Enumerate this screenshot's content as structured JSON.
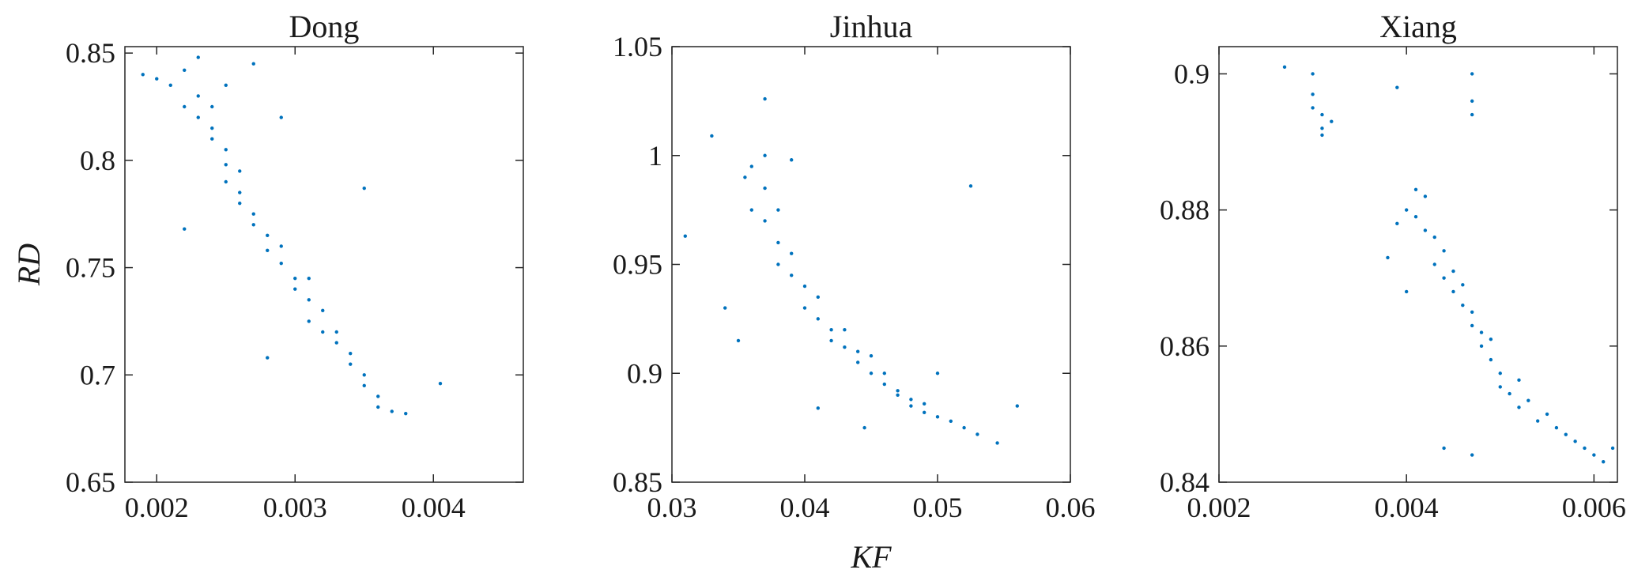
{
  "chart_data": [
    {
      "type": "scatter",
      "title": "Dong",
      "ylabel": "RD",
      "color": "#0072bd",
      "xlim": [
        0.00177,
        0.00465
      ],
      "ylim": [
        0.65,
        0.853
      ],
      "xticks": [
        0.002,
        0.003,
        0.004
      ],
      "yticks": [
        0.65,
        0.7,
        0.75,
        0.8,
        0.85
      ],
      "x": [
        0.0019,
        0.002,
        0.0021,
        0.0022,
        0.0022,
        0.0023,
        0.0023,
        0.0023,
        0.0024,
        0.0024,
        0.0024,
        0.0025,
        0.0025,
        0.0025,
        0.0026,
        0.0026,
        0.0026,
        0.0027,
        0.0027,
        0.0028,
        0.0028,
        0.0029,
        0.0029,
        0.003,
        0.003,
        0.0031,
        0.0031,
        0.0031,
        0.0032,
        0.0032,
        0.0033,
        0.0033,
        0.0034,
        0.0034,
        0.0035,
        0.0035,
        0.0036,
        0.0036,
        0.0037,
        0.0038,
        0.00405,
        0.0028,
        0.0022,
        0.0027,
        0.0029,
        0.0035,
        0.0025
      ],
      "y": [
        0.84,
        0.838,
        0.835,
        0.842,
        0.825,
        0.848,
        0.83,
        0.82,
        0.815,
        0.81,
        0.825,
        0.805,
        0.798,
        0.79,
        0.785,
        0.795,
        0.78,
        0.775,
        0.77,
        0.765,
        0.758,
        0.752,
        0.76,
        0.745,
        0.74,
        0.735,
        0.745,
        0.725,
        0.73,
        0.72,
        0.715,
        0.72,
        0.705,
        0.71,
        0.695,
        0.7,
        0.69,
        0.685,
        0.683,
        0.682,
        0.696,
        0.708,
        0.768,
        0.845,
        0.82,
        0.787,
        0.835
      ]
    },
    {
      "type": "scatter",
      "title": "Jinhua",
      "xlabel": "KF",
      "color": "#0072bd",
      "xlim": [
        0.03,
        0.06
      ],
      "ylim": [
        0.85,
        1.05
      ],
      "xticks": [
        0.03,
        0.04,
        0.05,
        0.06
      ],
      "yticks": [
        0.85,
        0.9,
        0.95,
        1,
        1.05
      ],
      "x": [
        0.031,
        0.033,
        0.0355,
        0.036,
        0.036,
        0.037,
        0.037,
        0.037,
        0.037,
        0.038,
        0.038,
        0.038,
        0.039,
        0.039,
        0.039,
        0.04,
        0.04,
        0.041,
        0.041,
        0.042,
        0.042,
        0.043,
        0.043,
        0.044,
        0.044,
        0.045,
        0.045,
        0.046,
        0.046,
        0.047,
        0.047,
        0.048,
        0.048,
        0.049,
        0.049,
        0.05,
        0.05,
        0.051,
        0.052,
        0.053,
        0.0545,
        0.0525,
        0.056,
        0.035,
        0.034,
        0.0445,
        0.041
      ],
      "y": [
        0.963,
        1.009,
        0.99,
        0.995,
        0.975,
        1.0,
        0.985,
        0.97,
        1.026,
        0.975,
        0.96,
        0.95,
        0.955,
        0.945,
        0.998,
        0.94,
        0.93,
        0.935,
        0.925,
        0.92,
        0.915,
        0.912,
        0.92,
        0.91,
        0.905,
        0.908,
        0.9,
        0.9,
        0.895,
        0.892,
        0.89,
        0.888,
        0.885,
        0.886,
        0.882,
        0.88,
        0.9,
        0.878,
        0.875,
        0.872,
        0.868,
        0.986,
        0.885,
        0.915,
        0.93,
        0.875,
        0.884
      ]
    },
    {
      "type": "scatter",
      "title": "Xiang",
      "color": "#0072bd",
      "xlim": [
        0.002,
        0.00625
      ],
      "ylim": [
        0.84,
        0.904
      ],
      "xticks": [
        0.002,
        0.004,
        0.006
      ],
      "yticks": [
        0.84,
        0.86,
        0.88,
        0.9
      ],
      "x": [
        0.0027,
        0.003,
        0.003,
        0.003,
        0.0031,
        0.0031,
        0.0031,
        0.0032,
        0.0039,
        0.0047,
        0.0047,
        0.0047,
        0.0038,
        0.0039,
        0.004,
        0.0041,
        0.0041,
        0.0042,
        0.0042,
        0.0043,
        0.0043,
        0.0044,
        0.0044,
        0.0045,
        0.0045,
        0.0046,
        0.0046,
        0.0047,
        0.0047,
        0.0048,
        0.0048,
        0.0049,
        0.0049,
        0.005,
        0.005,
        0.0051,
        0.0052,
        0.0052,
        0.0053,
        0.0054,
        0.0055,
        0.0056,
        0.0057,
        0.0058,
        0.0059,
        0.006,
        0.0061,
        0.0062,
        0.0044,
        0.0047,
        0.004
      ],
      "y": [
        0.901,
        0.9,
        0.897,
        0.895,
        0.894,
        0.892,
        0.891,
        0.893,
        0.898,
        0.9,
        0.896,
        0.894,
        0.873,
        0.878,
        0.88,
        0.883,
        0.879,
        0.882,
        0.877,
        0.876,
        0.872,
        0.874,
        0.87,
        0.871,
        0.868,
        0.866,
        0.869,
        0.863,
        0.865,
        0.862,
        0.86,
        0.858,
        0.861,
        0.856,
        0.854,
        0.853,
        0.855,
        0.851,
        0.852,
        0.849,
        0.85,
        0.848,
        0.847,
        0.846,
        0.845,
        0.844,
        0.843,
        0.845,
        0.845,
        0.844,
        0.868
      ]
    }
  ]
}
